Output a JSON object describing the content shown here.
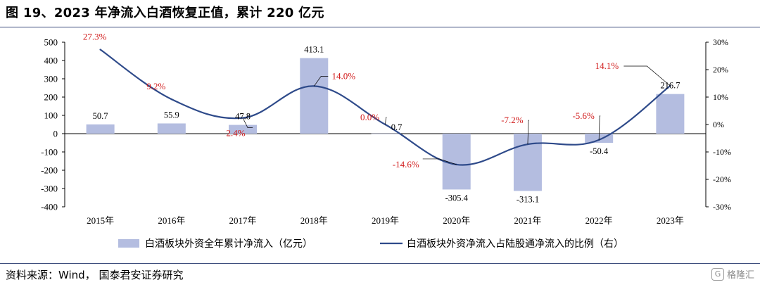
{
  "header": {
    "title": "图 19、2023 年净流入白酒恢复正值，累计 220 亿元"
  },
  "footer": {
    "source": "资料来源：Wind，   国泰君安证券研究",
    "logo_text": "格隆汇",
    "logo_glyph": "G"
  },
  "colors": {
    "bar": "#b4bde0",
    "line": "#2e4a8a",
    "pct": "#d11a1a",
    "rule": "#3a4a7a"
  },
  "chart_data": {
    "type": "bar+line",
    "title": "图 19、2023 年净流入白酒恢复正值，累计 220 亿元",
    "categories": [
      "2015年",
      "2016年",
      "2017年",
      "2018年",
      "2019年",
      "2020年",
      "2021年",
      "2022年",
      "2023年"
    ],
    "series": [
      {
        "name": "白酒板块外资全年累计净流入（亿元）",
        "type": "bar",
        "axis": "left",
        "values": [
          50.7,
          55.9,
          47.8,
          413.1,
          0.7,
          -305.4,
          -313.1,
          -50.4,
          216.7
        ],
        "labels": [
          "50.7",
          "55.9",
          "47.8",
          "413.1",
          "0.7",
          "-305.4",
          "-313.1",
          "-50.4",
          "216.7"
        ]
      },
      {
        "name": "白酒板块外资净流入占陆股通净流入的比例（右）",
        "type": "line",
        "axis": "right",
        "values": [
          27.3,
          9.2,
          2.4,
          14.0,
          0.0,
          -14.6,
          -7.2,
          -5.6,
          14.1
        ],
        "labels": [
          "27.3%",
          "9.2%",
          "2.4%",
          "14.0%",
          "0.0%",
          "-14.6%",
          "-7.2%",
          "-5.6%",
          "14.1%"
        ]
      }
    ],
    "left_axis": {
      "min": -400,
      "max": 500,
      "step": 100,
      "ticks": [
        "500",
        "400",
        "300",
        "200",
        "100",
        "0",
        "-100",
        "-200",
        "-300",
        "-400"
      ]
    },
    "right_axis": {
      "min": -30,
      "max": 30,
      "step": 10,
      "ticks": [
        "30%",
        "20%",
        "10%",
        "0%",
        "-10%",
        "-20%",
        "-30%"
      ]
    },
    "legend_position": "bottom",
    "grid": false
  }
}
